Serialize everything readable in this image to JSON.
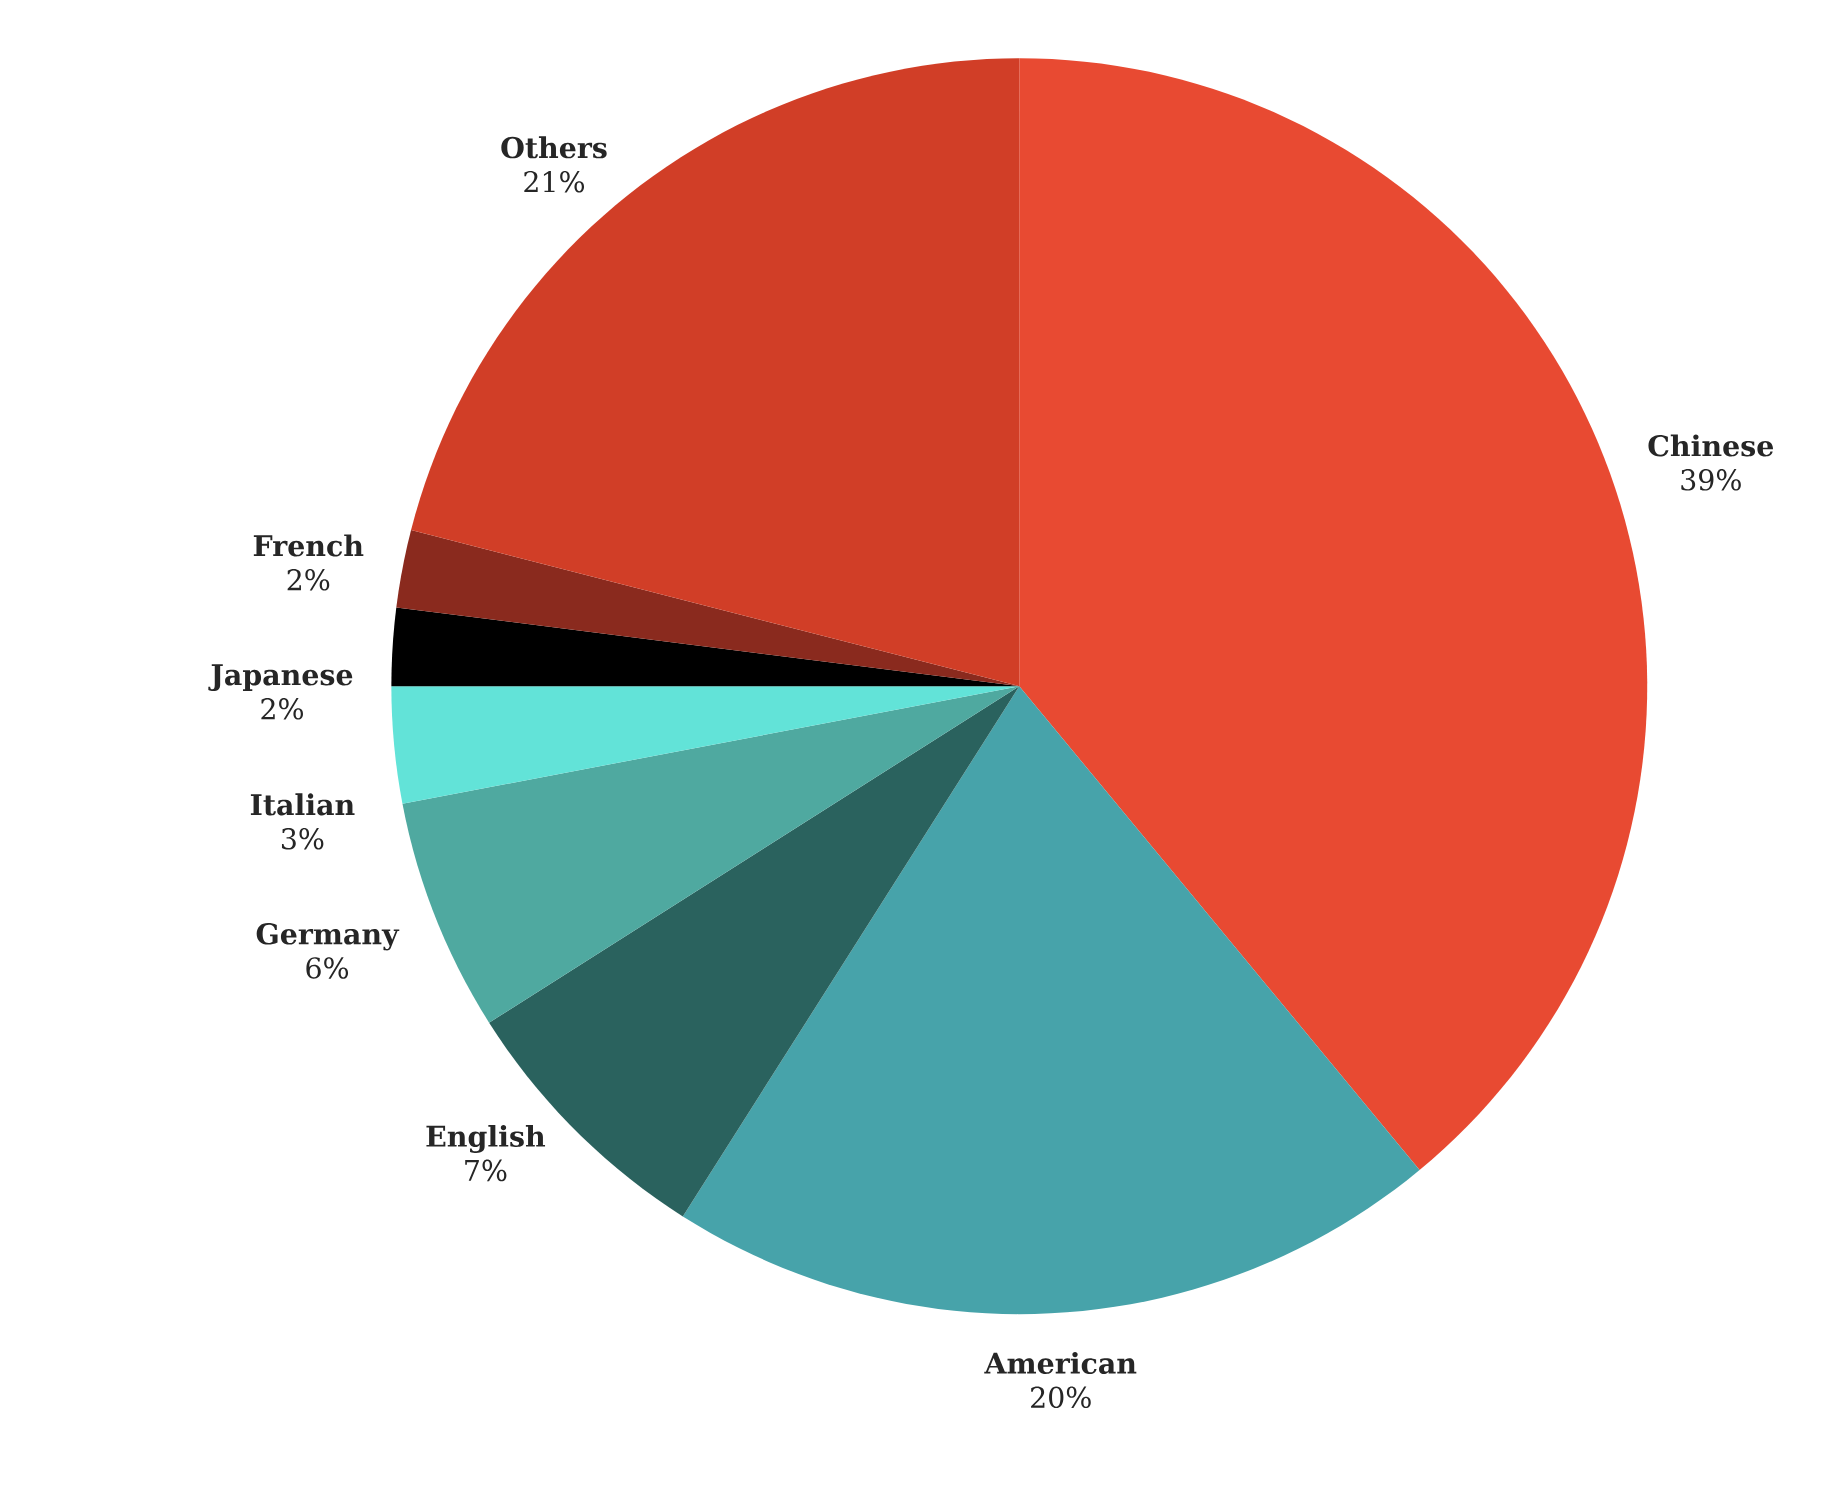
{
  "chart_data": {
    "type": "pie",
    "categories": [
      "Chinese",
      "American",
      "English",
      "Germany",
      "Italian",
      "Japanese",
      "French",
      "Others"
    ],
    "values": [
      39,
      20,
      7,
      6,
      3,
      2,
      2,
      21
    ],
    "value_labels": [
      "39%",
      "20%",
      "7%",
      "6%",
      "3%",
      "2%",
      "2%",
      "21%"
    ],
    "colors": [
      "#e84a32",
      "#47a3aa",
      "#2a625e",
      "#4fa9a0",
      "#62e3d8",
      "#000000",
      "#8a2a1e",
      "#d13e27"
    ]
  }
}
